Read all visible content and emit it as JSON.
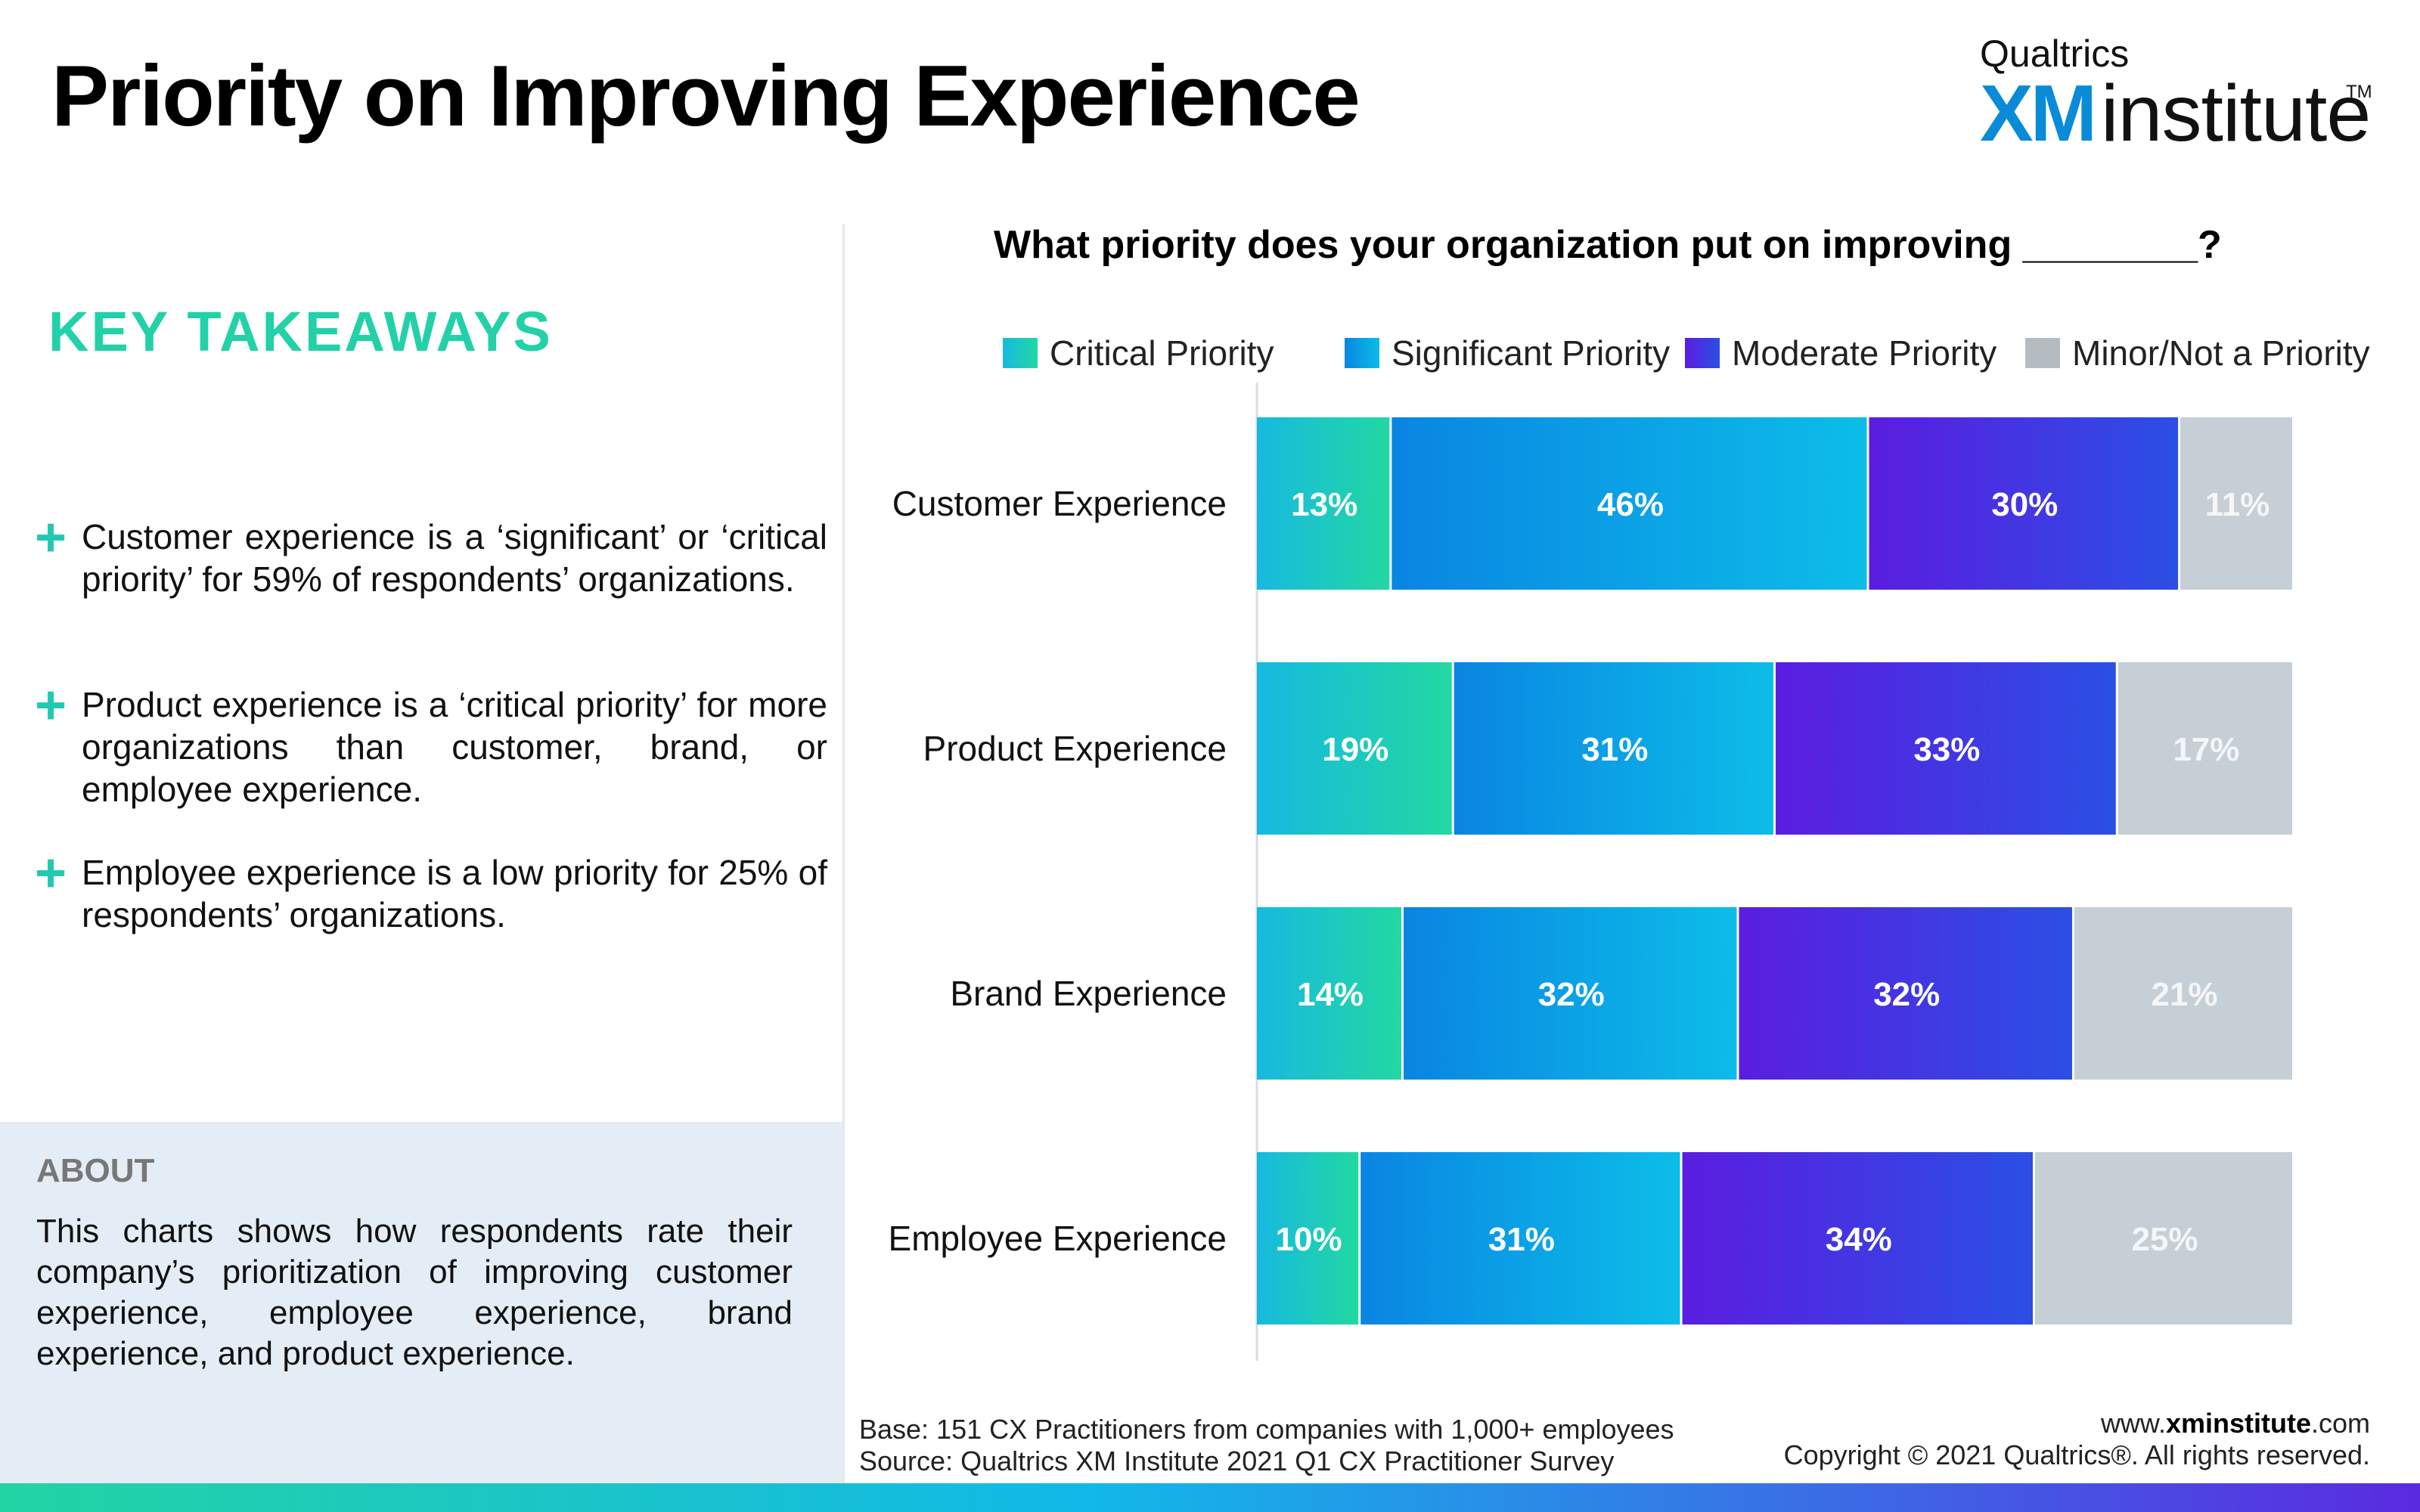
{
  "header": {
    "title": "Priority on Improving Experience",
    "logo_brand": "Qualtrics",
    "logo_xm": "XM",
    "logo_institute": "institute",
    "logo_tm": "TM"
  },
  "takeaways": {
    "heading": "KEY TAKEAWAYS",
    "bullet_glyph": "+",
    "items": [
      "Customer experience is a ‘significant’ or ‘critical priority’ for 59% of respondents’ organizations.",
      "Product experience is a ‘critical priority’ for more organizations than customer, brand, or employee experience.",
      "Employee experience is a low priority for 25% of respondents’ organizations."
    ]
  },
  "about": {
    "heading": "ABOUT",
    "text": "This charts shows how respondents rate their company’s prioritization of improving customer experience, employee experience, brand experience, and product experience."
  },
  "footer": {
    "base": "Base: 151 CX Practitioners from companies with 1,000+ employees",
    "source": "Source: Qualtrics XM Institute 2021 Q1 CX Practitioner Survey",
    "site_prefix": "www.",
    "site_bold": "xminstitute",
    "site_suffix": ".com",
    "copyright": "Copyright © 2021 Qualtrics®. All rights reserved."
  },
  "colors": {
    "accent_green": "#22d1a8",
    "critical": [
      "#17b9e0",
      "#22d8a2"
    ],
    "significant": [
      "#0a85e2",
      "#0cbde8"
    ],
    "moderate": [
      "#5b1de0",
      "#2b4fe4"
    ],
    "minor": "#c6cfd6"
  },
  "chart_data": {
    "type": "bar",
    "orientation": "horizontal",
    "stacked": true,
    "title": "What priority does your organization put on improving ________?",
    "categories": [
      "Customer Experience",
      "Product Experience",
      "Brand Experience",
      "Employee Experience"
    ],
    "series": [
      {
        "name": "Critical Priority",
        "values": [
          13,
          19,
          14,
          10
        ],
        "labels": [
          "13%",
          "19%",
          "14%",
          "10%"
        ]
      },
      {
        "name": "Significant Priority",
        "values": [
          46,
          31,
          32,
          31
        ],
        "labels": [
          "46%",
          "31%",
          "32%",
          "31%"
        ]
      },
      {
        "name": "Moderate Priority",
        "values": [
          30,
          33,
          32,
          34
        ],
        "labels": [
          "30%",
          "33%",
          "32%",
          "34%"
        ]
      },
      {
        "name": "Minor/Not a Priority",
        "values": [
          11,
          17,
          21,
          25
        ],
        "labels": [
          "11%",
          "17%",
          "21%",
          "25%"
        ]
      }
    ],
    "xlim": [
      0,
      100
    ],
    "legend": "top",
    "grid": false
  }
}
